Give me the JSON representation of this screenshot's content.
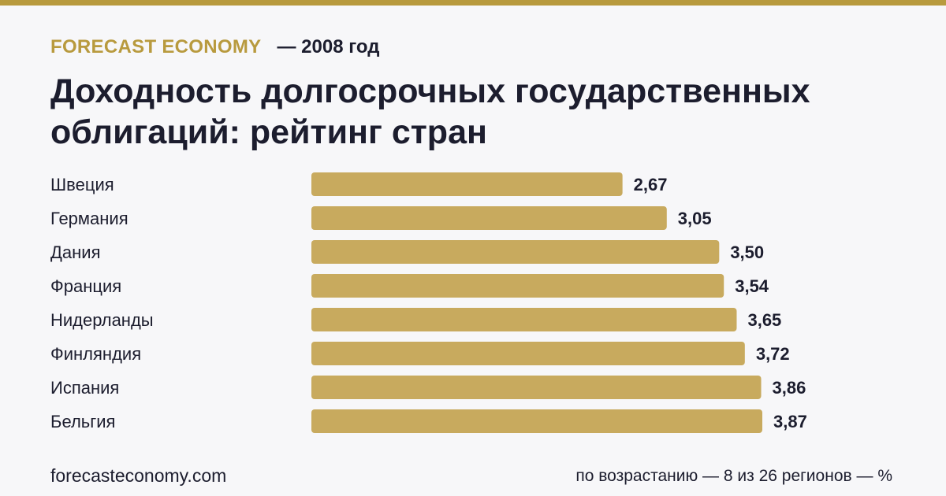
{
  "colors": {
    "accent": "#b89a3e",
    "bar": "#c8aa5e",
    "text": "#1c1d2e",
    "background": "#f7f7f9"
  },
  "header": {
    "brand": "FORECAST ECONOMY",
    "year": "— 2008 год"
  },
  "chart_data": {
    "type": "bar",
    "orientation": "horizontal",
    "title": "Доходность долгосрочных государственных облигаций: рейтинг стран",
    "categories": [
      "Швеция",
      "Германия",
      "Дания",
      "Франция",
      "Нидерланды",
      "Финляндия",
      "Испания",
      "Бельгия"
    ],
    "values": [
      2.67,
      3.05,
      3.5,
      3.54,
      3.65,
      3.72,
      3.86,
      3.87
    ],
    "value_labels": [
      "2,67",
      "3,05",
      "3,50",
      "3,54",
      "3,65",
      "3,72",
      "3,86",
      "3,87"
    ],
    "xlim": [
      0,
      3.87
    ],
    "grid": false,
    "legend": "none"
  },
  "footer": {
    "source": "forecasteconomy.com",
    "note": "по возрастанию — 8 из 26 регионов — %"
  }
}
